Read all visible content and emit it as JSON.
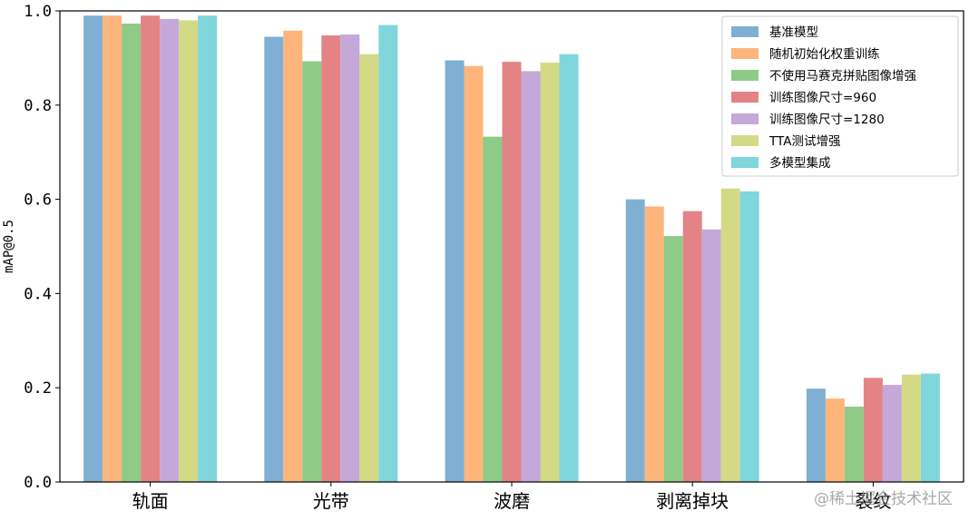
{
  "chart_data": {
    "type": "bar",
    "categories": [
      "轨面",
      "光带",
      "波磨",
      "剥离掉块",
      "裂纹"
    ],
    "ylabel": "mAP@0.5",
    "ylim": [
      0.0,
      1.0
    ],
    "yticks": [
      "0.0",
      "0.2",
      "0.4",
      "0.6",
      "0.8",
      "1.0"
    ],
    "legend_position": "top-right",
    "grid": false,
    "series": [
      {
        "name": "基准模型",
        "color": "#7fb0d4",
        "values": [
          0.99,
          0.945,
          0.895,
          0.6,
          0.198
        ]
      },
      {
        "name": "随机初始化权重训练",
        "color": "#fdb57b",
        "values": [
          0.99,
          0.958,
          0.883,
          0.585,
          0.177
        ]
      },
      {
        "name": "不使用马赛克拼贴图像增强",
        "color": "#8ecb86",
        "values": [
          0.973,
          0.893,
          0.733,
          0.522,
          0.16
        ]
      },
      {
        "name": "训练图像尺寸=960",
        "color": "#e48386",
        "values": [
          0.99,
          0.948,
          0.892,
          0.575,
          0.221
        ]
      },
      {
        "name": "训练图像尺寸=1280",
        "color": "#c4a8d9",
        "values": [
          0.983,
          0.95,
          0.872,
          0.536,
          0.206
        ]
      },
      {
        "name": "TTA测试增强",
        "color": "#d4d986",
        "values": [
          0.98,
          0.908,
          0.89,
          0.623,
          0.228
        ]
      },
      {
        "name": "多模型集成",
        "color": "#7fd6dc",
        "values": [
          0.99,
          0.97,
          0.908,
          0.617,
          0.23
        ]
      }
    ]
  },
  "watermark": "@稀土掘金技术社区"
}
